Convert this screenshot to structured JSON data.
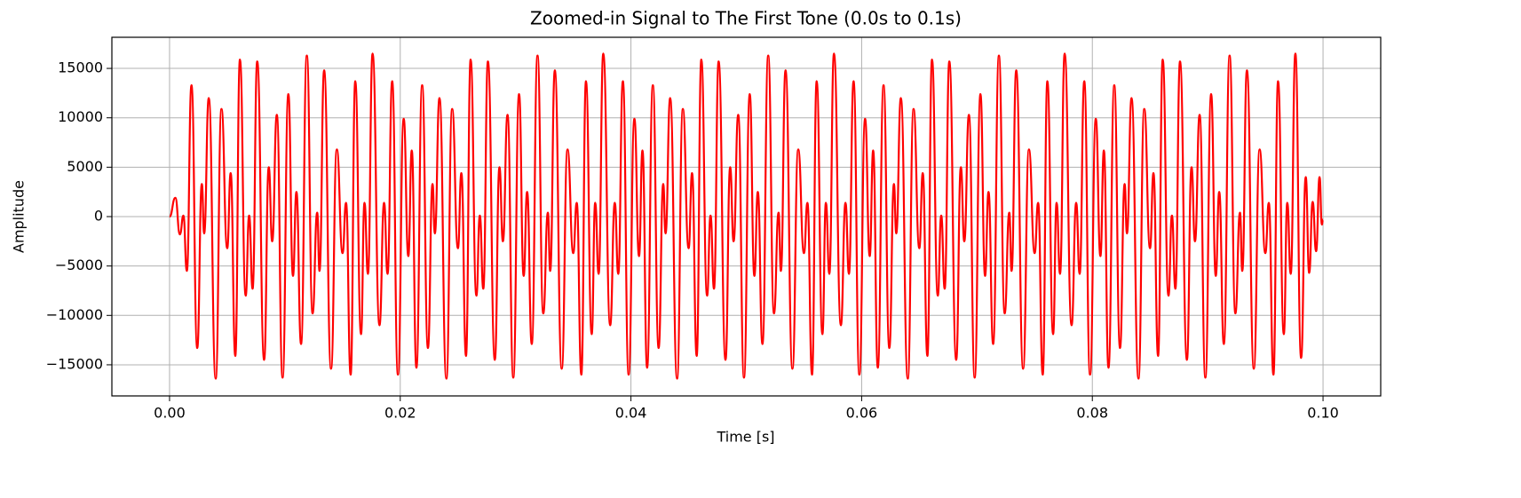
{
  "chart_data": {
    "type": "line",
    "title": "Zoomed-in Signal to The First Tone (0.0s to 0.1s)",
    "xlabel": "Time [s]",
    "ylabel": "Amplitude",
    "color": "#ff0000",
    "grid": true,
    "xlim": [
      -0.005,
      0.105
    ],
    "ylim": [
      -18150,
      18150
    ],
    "xticks": [
      {
        "value": 0,
        "label": "0.00"
      },
      {
        "value": 0.02,
        "label": "0.02"
      },
      {
        "value": 0.04,
        "label": "0.04"
      },
      {
        "value": 0.06,
        "label": "0.06"
      },
      {
        "value": 0.08,
        "label": "0.08"
      },
      {
        "value": 0.1,
        "label": "0.10"
      }
    ],
    "yticks": [
      {
        "value": -15000,
        "label": "−15000"
      },
      {
        "value": -10000,
        "label": "−10000"
      },
      {
        "value": -5000,
        "label": "−5000"
      },
      0,
      5000,
      10000,
      15000
    ],
    "x": [
      0,
      0.0005,
      0.0009,
      0.0012,
      0.0015,
      0.0019,
      0.0024,
      0.0028,
      0.003,
      0.0034,
      0.004,
      0.0045,
      0.005,
      0.0053,
      0.0057,
      0.0061,
      0.0066,
      0.0069,
      0.0072,
      0.0076,
      0.0082,
      0.0086,
      0.0089,
      0.0093,
      0.0098,
      0.0103,
      0.0107,
      0.011,
      0.0114,
      0.0119,
      0.0124,
      0.0128,
      0.013,
      0.0134,
      0.014,
      0.0145,
      0.015,
      0.0153,
      0.0157,
      0.0161,
      0.0166,
      0.0169,
      0.0172,
      0.0176,
      0.0182,
      0.0186,
      0.0189,
      0.0193,
      0.0198,
      0.0203,
      0.0207,
      0.021,
      0.0214,
      0.0219,
      0.0224,
      0.0228,
      0.023,
      0.0234,
      0.024,
      0.0245,
      0.025,
      0.0253,
      0.0257,
      0.0261,
      0.0266,
      0.0269,
      0.0272,
      0.0276,
      0.0282,
      0.0286,
      0.0289,
      0.0293,
      0.0298,
      0.0303,
      0.0307,
      0.031,
      0.0314,
      0.0319,
      0.0324,
      0.0328,
      0.033,
      0.0334,
      0.034,
      0.0345,
      0.035,
      0.0353,
      0.0357,
      0.0361,
      0.0366,
      0.0369,
      0.0372,
      0.0376,
      0.0382,
      0.0386,
      0.0389,
      0.0393,
      0.0398,
      0.0403,
      0.0407,
      0.041,
      0.0414,
      0.0419,
      0.0424,
      0.0428,
      0.043,
      0.0434,
      0.044,
      0.0445,
      0.045,
      0.0453,
      0.0457,
      0.0461,
      0.0466,
      0.0469,
      0.0472,
      0.0476,
      0.0482,
      0.0486,
      0.0489,
      0.0493,
      0.0498,
      0.0503,
      0.0507,
      0.051,
      0.0514,
      0.0519,
      0.0524,
      0.0528,
      0.053,
      0.0534,
      0.054,
      0.0545,
      0.055,
      0.0553,
      0.0557,
      0.0561,
      0.0566,
      0.0569,
      0.0572,
      0.0576,
      0.0582,
      0.0586,
      0.0589,
      0.0593,
      0.0598,
      0.0603,
      0.0607,
      0.061,
      0.0614,
      0.0619,
      0.0624,
      0.0628,
      0.063,
      0.0634,
      0.064,
      0.0645,
      0.065,
      0.0653,
      0.0657,
      0.0661,
      0.0666,
      0.0669,
      0.0672,
      0.0676,
      0.0682,
      0.0686,
      0.0689,
      0.0693,
      0.0698,
      0.0703,
      0.0707,
      0.071,
      0.0714,
      0.0719,
      0.0724,
      0.0728,
      0.073,
      0.0734,
      0.074,
      0.0745,
      0.075,
      0.0753,
      0.0757,
      0.0761,
      0.0766,
      0.0769,
      0.0772,
      0.0776,
      0.0782,
      0.0786,
      0.0789,
      0.0793,
      0.0798,
      0.0803,
      0.0807,
      0.081,
      0.0814,
      0.0819,
      0.0824,
      0.0828,
      0.083,
      0.0834,
      0.084,
      0.0845,
      0.085,
      0.0853,
      0.0857,
      0.0861,
      0.0866,
      0.0869,
      0.0872,
      0.0876,
      0.0882,
      0.0886,
      0.0889,
      0.0893,
      0.0898,
      0.0903,
      0.0907,
      0.091,
      0.0914,
      0.0919,
      0.0924,
      0.0928,
      0.093,
      0.0934,
      0.094,
      0.0945,
      0.095,
      0.0953,
      0.0957,
      0.0961,
      0.0966,
      0.0969,
      0.0972,
      0.0976,
      0.0981,
      0.0985,
      0.0988,
      0.0991,
      0.0994,
      0.0997,
      0.0999,
      0.1
    ],
    "values": [
      0,
      1900,
      -1800,
      100,
      -5500,
      13300,
      -13300,
      3300,
      -1700,
      12000,
      -16400,
      10900,
      -3200,
      4400,
      -14100,
      15900,
      -8000,
      100,
      -7300,
      15700,
      -14500,
      5000,
      -2500,
      10300,
      -16300,
      12400,
      -6000,
      2500,
      -12900,
      16300,
      -9800,
      400,
      -5500,
      14800,
      -15400,
      6800,
      -3700,
      1400,
      -16000,
      13700,
      -11900,
      1400,
      -5800,
      16500,
      -11000,
      1400,
      -5800,
      13700,
      -16000,
      9900,
      -4000,
      6700,
      -15300,
      13300,
      -13300,
      3300,
      -1700,
      12000,
      -16400,
      10900,
      -3200,
      4400,
      -14100,
      15900,
      -8000,
      100,
      -7300,
      15700,
      -14500,
      5000,
      -2500,
      10300,
      -16300,
      12400,
      -6000,
      2500,
      -12900,
      16300,
      -9800,
      400,
      -5500,
      14800,
      -15400,
      6800,
      -3700,
      1400,
      -16000,
      13700,
      -11900,
      1400,
      -5800,
      16500,
      -11000,
      1400,
      -5800,
      13700,
      -16000,
      9900,
      -4000,
      6700,
      -15300,
      13300,
      -13300,
      3300,
      -1700,
      12000,
      -16400,
      10900,
      -3200,
      4400,
      -14100,
      15900,
      -8000,
      100,
      -7300,
      15700,
      -14500,
      5000,
      -2500,
      10300,
      -16300,
      12400,
      -6000,
      2500,
      -12900,
      16300,
      -9800,
      400,
      -5500,
      14800,
      -15400,
      6800,
      -3700,
      1400,
      -16000,
      13700,
      -11900,
      1400,
      -5800,
      16500,
      -11000,
      1400,
      -5800,
      13700,
      -16000,
      9900,
      -4000,
      6700,
      -15300,
      13300,
      -13300,
      3300,
      -1700,
      12000,
      -16400,
      10900,
      -3200,
      4400,
      -14100,
      15900,
      -8000,
      100,
      -7300,
      15700,
      -14500,
      5000,
      -2500,
      10300,
      -16300,
      12400,
      -6000,
      2500,
      -12900,
      16300,
      -9800,
      400,
      -5500,
      14800,
      -15400,
      6800,
      -3700,
      1400,
      -16000,
      13700,
      -11900,
      1400,
      -5800,
      16500,
      -11000,
      1400,
      -5800,
      13700,
      -16000,
      9900,
      -4000,
      6700,
      -15300,
      13300,
      -13300,
      3300,
      -1700,
      12000,
      -16400,
      10900,
      -3200,
      4400,
      -14100,
      15900,
      -8000,
      100,
      -7300,
      15700,
      -14500,
      5000,
      -2500,
      10300,
      -16300,
      12400,
      -6000,
      2500,
      -12900,
      16300,
      -9800,
      400,
      -5500,
      14800,
      -15400,
      6800,
      -3700,
      1400,
      -16000,
      13700,
      -11900,
      1400,
      -5800,
      16500,
      -14300,
      4000,
      -5700,
      1500,
      -3500,
      4000,
      -800,
      -300
    ]
  }
}
